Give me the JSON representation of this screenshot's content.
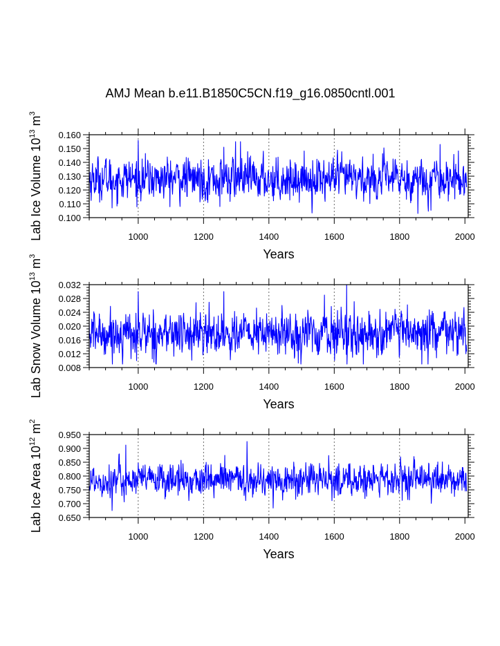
{
  "title": "AMJ Mean b.e11.B1850C5CN.f19_g16.0850cntl.001",
  "colors": {
    "series": "#0000ff",
    "axes": "#000000",
    "grid": "#555555"
  },
  "chart_data": [
    {
      "type": "line",
      "name": "ice-volume",
      "ylabel": "Lab Ice Volume 10",
      "ylabel_exp": "13",
      "ylabel_unit": "m",
      "ylabel_unit_exp": "3",
      "xlabel": "Years",
      "xlim": [
        850,
        2010
      ],
      "ylim": [
        0.1,
        0.16
      ],
      "xticks": [
        1000,
        1200,
        1400,
        1600,
        1800,
        2000
      ],
      "xtick_labels": [
        "1000",
        "1200",
        "1400",
        "1600",
        "1800",
        "2000"
      ],
      "yticks": [
        0.1,
        0.11,
        0.12,
        0.13,
        0.14,
        0.15,
        0.16
      ],
      "ytick_labels": [
        "0.100",
        "0.110",
        "0.120",
        "0.130",
        "0.140",
        "0.150",
        "0.160"
      ],
      "grid_x": [
        1000,
        1200,
        1400,
        1600,
        1800
      ],
      "series": {
        "name": "Lab Ice Volume",
        "x_start": 850,
        "x_end": 2005,
        "mean": 0.128,
        "sd": 0.0075,
        "min": 0.103,
        "max": 0.156,
        "peaks": [
          [
            1000,
            0.156
          ],
          [
            1298,
            0.155
          ],
          [
            1313,
            0.155
          ],
          [
            1262,
            0.151
          ],
          [
            1924,
            0.153
          ],
          [
            1856,
            0.103
          ],
          [
            920,
            0.107
          ],
          [
            1250,
            0.108
          ]
        ]
      }
    },
    {
      "type": "line",
      "name": "snow-volume",
      "ylabel": "Lab Snow Volume 10",
      "ylabel_exp": "13",
      "ylabel_unit": "m",
      "ylabel_unit_exp": "3",
      "xlabel": "Years",
      "xlim": [
        850,
        2010
      ],
      "ylim": [
        0.008,
        0.032
      ],
      "xticks": [
        1000,
        1200,
        1400,
        1600,
        1800,
        2000
      ],
      "xtick_labels": [
        "1000",
        "1200",
        "1400",
        "1600",
        "1800",
        "2000"
      ],
      "yticks": [
        0.008,
        0.012,
        0.016,
        0.02,
        0.024,
        0.028,
        0.032
      ],
      "ytick_labels": [
        "0.008",
        "0.012",
        "0.016",
        "0.020",
        "0.024",
        "0.028",
        "0.032"
      ],
      "grid_x": [
        1000,
        1200,
        1400,
        1600,
        1800
      ],
      "series": {
        "name": "Lab Snow Volume",
        "x_start": 850,
        "x_end": 2005,
        "mean": 0.0178,
        "sd": 0.0032,
        "min": 0.009,
        "max": 0.032,
        "peaks": [
          [
            1638,
            0.032
          ],
          [
            1000,
            0.03
          ],
          [
            1262,
            0.03
          ],
          [
            1570,
            0.029
          ],
          [
            1868,
            0.009
          ],
          [
            995,
            0.01
          ]
        ]
      }
    },
    {
      "type": "line",
      "name": "ice-area",
      "ylabel": "Lab Ice Area 10",
      "ylabel_exp": "12",
      "ylabel_unit": "m",
      "ylabel_unit_exp": "2",
      "xlabel": "Years",
      "xlim": [
        850,
        2010
      ],
      "ylim": [
        0.65,
        0.95
      ],
      "xticks": [
        1000,
        1200,
        1400,
        1600,
        1800,
        2000
      ],
      "xtick_labels": [
        "1000",
        "1200",
        "1400",
        "1600",
        "1800",
        "2000"
      ],
      "yticks": [
        0.65,
        0.7,
        0.75,
        0.8,
        0.85,
        0.9,
        0.95
      ],
      "ytick_labels": [
        "0.650",
        "0.700",
        "0.750",
        "0.800",
        "0.850",
        "0.900",
        "0.950"
      ],
      "grid_x": [
        1000,
        1200,
        1400,
        1600,
        1800
      ],
      "series": {
        "name": "Lab Ice Area",
        "x_start": 850,
        "x_end": 2005,
        "mean": 0.785,
        "sd": 0.03,
        "min": 0.675,
        "max": 0.925,
        "peaks": [
          [
            1333,
            0.925
          ],
          [
            962,
            0.912
          ],
          [
            1265,
            0.875
          ],
          [
            920,
            0.675
          ],
          [
            1808,
            0.712
          ]
        ]
      }
    }
  ]
}
